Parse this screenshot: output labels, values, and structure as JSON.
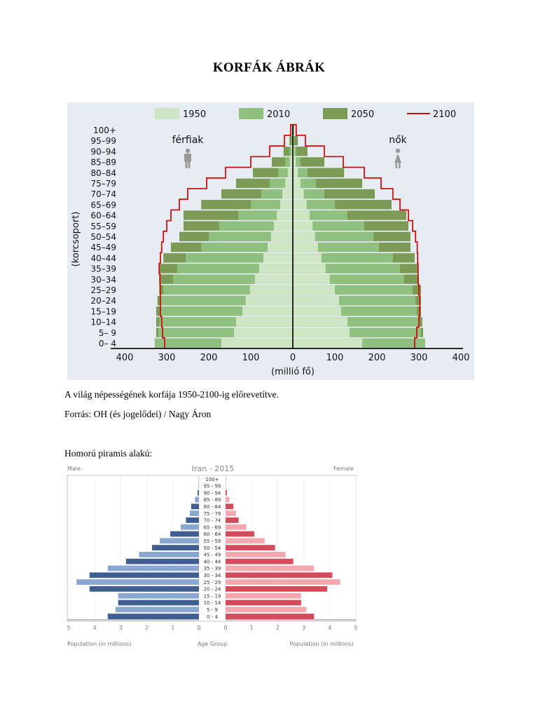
{
  "title": "KORFÁK ÁBRÁK",
  "caption1": "A világ népességének korfája 1950-2100-ig előrevetítve.",
  "source": "Forrás: OH (és jogelődei) / Nagy Áron",
  "caption2": "Homorú piramis alakú:",
  "chart1": {
    "legend": [
      "1950",
      "2010",
      "2050",
      "2100"
    ],
    "male_label": "férfiak",
    "female_label": "nők",
    "ylabel": "(korcsoport)",
    "xlabel": "(millió fő)",
    "xticks": [
      "400",
      "300",
      "200",
      "100",
      "0",
      "100",
      "200",
      "300",
      "400"
    ]
  },
  "chart2": {
    "title": "Iran - 2015",
    "male_label": "Male",
    "female_label": "Female",
    "xlabel_left": "Population (in millions)",
    "xlabel_center": "Age Group",
    "xlabel_right": "Population (in millions)",
    "xticks_left": [
      "5",
      "4",
      "3",
      "2",
      "1",
      "0"
    ],
    "xticks_right": [
      "0",
      "1",
      "2",
      "3",
      "4",
      "5"
    ]
  },
  "chart_data": [
    {
      "type": "bar",
      "orientation": "horizontal",
      "categories": [
        "0– 4",
        "5– 9",
        "10–14",
        "15–19",
        "20–24",
        "25–29",
        "30–34",
        "35–39",
        "40–44",
        "45–49",
        "50–54",
        "55–59",
        "60–64",
        "65–69",
        "70–74",
        "75–79",
        "80–84",
        "85–89",
        "90–94",
        "95–99",
        "100+"
      ],
      "xlabel": "(millió fő)",
      "ylabel": "(korcsoport)",
      "xlim": [
        -400,
        400
      ],
      "legend_position": "top",
      "series": [
        {
          "name": "1950",
          "color": "#cfe6c4",
          "male": [
            170,
            140,
            135,
            120,
            112,
            102,
            90,
            80,
            70,
            60,
            52,
            45,
            38,
            30,
            25,
            18,
            12,
            7,
            3,
            1,
            0
          ],
          "female": [
            165,
            135,
            130,
            115,
            110,
            100,
            88,
            78,
            68,
            60,
            53,
            47,
            40,
            33,
            26,
            18,
            12,
            7,
            3,
            1,
            0
          ]
        },
        {
          "name": "2010",
          "color": "#8fc07f",
          "male": [
            327,
            320,
            318,
            315,
            315,
            308,
            285,
            275,
            255,
            218,
            200,
            175,
            130,
            100,
            75,
            55,
            35,
            18,
            8,
            3,
            0
          ],
          "female": [
            315,
            305,
            300,
            295,
            292,
            285,
            265,
            255,
            238,
            205,
            192,
            170,
            130,
            100,
            75,
            55,
            35,
            18,
            8,
            3,
            0
          ]
        },
        {
          "name": "2050",
          "color": "#7a9a56",
          "male": [
            328,
            325,
            325,
            325,
            322,
            318,
            318,
            318,
            308,
            290,
            270,
            260,
            260,
            218,
            170,
            135,
            95,
            50,
            22,
            8,
            2
          ],
          "female": [
            308,
            310,
            308,
            305,
            305,
            305,
            300,
            298,
            290,
            280,
            280,
            275,
            270,
            235,
            195,
            165,
            122,
            75,
            35,
            12,
            3
          ]
        },
        {
          "name": "2100",
          "color": "#cc1111",
          "male": [
            305,
            310,
            312,
            315,
            315,
            315,
            316,
            318,
            315,
            312,
            308,
            300,
            290,
            270,
            250,
            205,
            160,
            100,
            55,
            20,
            5
          ],
          "female": [
            290,
            295,
            300,
            302,
            302,
            300,
            298,
            298,
            297,
            296,
            292,
            285,
            275,
            255,
            238,
            210,
            170,
            120,
            75,
            30,
            8
          ]
        }
      ]
    },
    {
      "type": "bar",
      "orientation": "horizontal",
      "title": "Iran - 2015",
      "categories": [
        "0 - 4",
        "5 - 9",
        "10 - 14",
        "15 - 19",
        "20 - 24",
        "25 - 29",
        "30 - 34",
        "35 - 39",
        "40 - 44",
        "45 - 49",
        "50 - 54",
        "55 - 59",
        "60 - 64",
        "65 - 69",
        "70 - 74",
        "75 - 79",
        "80 - 84",
        "85 - 89",
        "90 - 94",
        "95 - 99",
        "100+"
      ],
      "xlim": [
        -5,
        5
      ],
      "series": [
        {
          "name": "Male",
          "color": "#5574a8",
          "values": [
            3.5,
            3.2,
            3.1,
            3.1,
            4.2,
            4.7,
            4.2,
            3.5,
            2.8,
            2.3,
            1.8,
            1.5,
            1.1,
            0.7,
            0.5,
            0.35,
            0.3,
            0.15,
            0.05,
            0.02,
            0.01
          ]
        },
        {
          "name": "Female",
          "color": "#e87c85",
          "values": [
            3.4,
            3.1,
            2.9,
            2.9,
            3.9,
            4.4,
            4.1,
            3.4,
            2.6,
            2.3,
            1.9,
            1.5,
            1.1,
            0.8,
            0.5,
            0.4,
            0.3,
            0.15,
            0.05,
            0.02,
            0.01
          ]
        }
      ]
    }
  ]
}
